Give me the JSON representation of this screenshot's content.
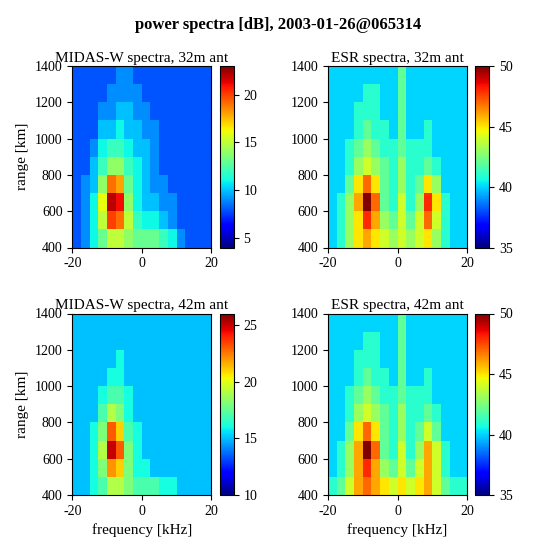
{
  "title": "power spectra [dB], 2003-01-26@065314",
  "chart_data": [
    {
      "type": "heatmap",
      "title": "MIDAS-W spectra, 32m ant",
      "ylabel": "range [km]",
      "x_edges": [
        -20,
        -17.5,
        -15,
        -12.5,
        -10,
        -7.5,
        -5,
        -2.5,
        0,
        2.5,
        5,
        7.5,
        10,
        12.5,
        15,
        17.5,
        20
      ],
      "y_edges": [
        400,
        500,
        600,
        700,
        800,
        900,
        1000,
        1100,
        1200,
        1300,
        1400
      ],
      "cells": [
        [
          8,
          9,
          11,
          13,
          15,
          15,
          14,
          13,
          13,
          13,
          12,
          11,
          9,
          8,
          8,
          8
        ],
        [
          8,
          9,
          11,
          15,
          20,
          19,
          15,
          12,
          11,
          11,
          10,
          9,
          8,
          8,
          8,
          8
        ],
        [
          8,
          9,
          11,
          16,
          22,
          21,
          14,
          11,
          10,
          10,
          9,
          9,
          8,
          8,
          8,
          8
        ],
        [
          8,
          9,
          10,
          14,
          19,
          18,
          13,
          11,
          10,
          9,
          9,
          8,
          8,
          8,
          8,
          8
        ],
        [
          8,
          8,
          10,
          12,
          14,
          14,
          12,
          11,
          10,
          9,
          8,
          8,
          8,
          8,
          8,
          8
        ],
        [
          8,
          8,
          9,
          11,
          12,
          12,
          11,
          10,
          10,
          9,
          8,
          8,
          8,
          8,
          8,
          8
        ],
        [
          8,
          8,
          8,
          10,
          10,
          11,
          10,
          10,
          9,
          9,
          8,
          8,
          8,
          8,
          8,
          8
        ],
        [
          8,
          8,
          8,
          9,
          9,
          10,
          10,
          9,
          9,
          8,
          8,
          8,
          8,
          8,
          8,
          8
        ],
        [
          8,
          8,
          8,
          8,
          9,
          9,
          9,
          9,
          8,
          8,
          8,
          8,
          8,
          8,
          8,
          8
        ],
        [
          8,
          8,
          8,
          8,
          8,
          9,
          9,
          8,
          8,
          8,
          8,
          8,
          8,
          8,
          8,
          8
        ]
      ],
      "colorbar": {
        "lim": [
          4,
          23
        ],
        "ticks": [
          5,
          10,
          15,
          20
        ]
      },
      "xlim": [
        -20,
        20
      ],
      "xticks": [
        -20,
        0,
        20
      ],
      "ylim": [
        400,
        1400
      ],
      "yticks": [
        400,
        600,
        800,
        1000,
        1200,
        1400
      ]
    },
    {
      "type": "heatmap",
      "title": "ESR spectra, 32m ant",
      "x_edges": [
        -20,
        -17.5,
        -15,
        -12.5,
        -10,
        -7.5,
        -5,
        -2.5,
        0,
        2.5,
        5,
        7.5,
        10,
        12.5,
        15,
        17.5,
        20
      ],
      "y_edges": [
        400,
        500,
        600,
        700,
        800,
        900,
        1000,
        1100,
        1200,
        1300,
        1400
      ],
      "cells": [
        [
          40,
          41,
          43,
          45,
          46,
          45,
          44,
          43,
          44,
          43,
          44,
          45,
          43,
          41,
          40,
          40
        ],
        [
          40,
          41,
          43,
          45,
          48,
          46,
          43,
          42,
          44,
          42,
          44,
          47,
          44,
          41,
          40,
          40
        ],
        [
          40,
          41,
          43,
          46,
          50,
          47,
          42,
          41,
          44,
          41,
          43,
          48,
          45,
          41,
          40,
          40
        ],
        [
          40,
          40,
          42,
          45,
          47,
          45,
          42,
          41,
          43,
          41,
          42,
          45,
          43,
          40,
          40,
          40
        ],
        [
          40,
          40,
          41,
          43,
          44,
          43,
          42,
          41,
          43,
          41,
          41,
          42,
          41,
          40,
          40,
          40
        ],
        [
          40,
          40,
          41,
          42,
          43,
          42,
          41,
          41,
          42,
          41,
          41,
          41,
          40,
          40,
          40,
          40
        ],
        [
          40,
          40,
          40,
          41,
          42,
          41,
          41,
          40,
          42,
          40,
          40,
          41,
          40,
          40,
          40,
          40
        ],
        [
          40,
          40,
          40,
          41,
          41,
          41,
          40,
          40,
          42,
          40,
          40,
          40,
          40,
          40,
          40,
          40
        ],
        [
          40,
          40,
          40,
          40,
          41,
          41,
          40,
          40,
          42,
          40,
          40,
          40,
          40,
          40,
          40,
          40
        ],
        [
          40,
          40,
          40,
          40,
          40,
          40,
          40,
          40,
          42,
          40,
          40,
          40,
          40,
          40,
          40,
          40
        ]
      ],
      "colorbar": {
        "lim": [
          35,
          50
        ],
        "ticks": [
          35,
          40,
          45,
          50
        ]
      },
      "xlim": [
        -20,
        20
      ],
      "xticks": [
        -20,
        0,
        20
      ],
      "ylim": [
        400,
        1400
      ],
      "yticks": [
        400,
        600,
        800,
        1000,
        1200,
        1400
      ]
    },
    {
      "type": "heatmap",
      "title": "MIDAS-W spectra, 42m ant",
      "xlabel": "frequency [kHz]",
      "ylabel": "range [km]",
      "x_edges": [
        -20,
        -17.5,
        -15,
        -12.5,
        -10,
        -7.5,
        -5,
        -2.5,
        0,
        2.5,
        5,
        7.5,
        10,
        12.5,
        15,
        17.5,
        20
      ],
      "y_edges": [
        400,
        500,
        600,
        700,
        800,
        900,
        1000,
        1100,
        1200,
        1300,
        1400
      ],
      "cells": [
        [
          15,
          15,
          16,
          17,
          19,
          19,
          18,
          17,
          17,
          17,
          16,
          16,
          15,
          15,
          15,
          15
        ],
        [
          15,
          15,
          16,
          18,
          22,
          21,
          18,
          16,
          16,
          15,
          15,
          15,
          15,
          15,
          15,
          15
        ],
        [
          15,
          15,
          16,
          19,
          25,
          23,
          18,
          16,
          15,
          15,
          15,
          15,
          15,
          15,
          15,
          15
        ],
        [
          15,
          15,
          16,
          18,
          23,
          21,
          17,
          16,
          15,
          15,
          15,
          15,
          15,
          15,
          15,
          15
        ],
        [
          15,
          15,
          15,
          17,
          19,
          18,
          16,
          15,
          15,
          15,
          15,
          15,
          15,
          15,
          15,
          15
        ],
        [
          15,
          15,
          15,
          16,
          17,
          17,
          16,
          15,
          15,
          15,
          15,
          15,
          15,
          15,
          15,
          15
        ],
        [
          15,
          15,
          15,
          15,
          16,
          16,
          15,
          15,
          15,
          15,
          15,
          15,
          15,
          15,
          15,
          15
        ],
        [
          15,
          15,
          15,
          15,
          15,
          16,
          15,
          15,
          15,
          15,
          15,
          15,
          15,
          15,
          15,
          15
        ],
        [
          15,
          15,
          15,
          15,
          15,
          15,
          15,
          15,
          15,
          15,
          15,
          15,
          15,
          15,
          15,
          15
        ],
        [
          15,
          15,
          15,
          15,
          15,
          15,
          15,
          15,
          15,
          15,
          15,
          15,
          15,
          15,
          15,
          15
        ]
      ],
      "colorbar": {
        "lim": [
          10,
          26
        ],
        "ticks": [
          10,
          15,
          20,
          25
        ]
      },
      "xlim": [
        -20,
        20
      ],
      "xticks": [
        -20,
        0,
        20
      ],
      "ylim": [
        400,
        1400
      ],
      "yticks": [
        400,
        600,
        800,
        1000,
        1200,
        1400
      ]
    },
    {
      "type": "heatmap",
      "title": "ESR spectra, 42m ant",
      "xlabel": "frequency [kHz]",
      "x_edges": [
        -20,
        -17.5,
        -15,
        -12.5,
        -10,
        -7.5,
        -5,
        -2.5,
        0,
        2.5,
        5,
        7.5,
        10,
        12.5,
        15,
        17.5,
        20
      ],
      "y_edges": [
        400,
        500,
        600,
        700,
        800,
        900,
        1000,
        1100,
        1200,
        1300,
        1400
      ],
      "cells": [
        [
          41,
          42,
          44,
          46,
          47,
          46,
          45,
          44,
          45,
          44,
          45,
          46,
          44,
          42,
          41,
          41
        ],
        [
          40,
          41,
          43,
          46,
          48,
          46,
          43,
          42,
          44,
          42,
          44,
          46,
          44,
          41,
          40,
          40
        ],
        [
          40,
          41,
          43,
          46,
          50,
          47,
          42,
          41,
          44,
          41,
          43,
          46,
          44,
          41,
          40,
          40
        ],
        [
          40,
          40,
          42,
          45,
          47,
          45,
          42,
          41,
          43,
          41,
          42,
          44,
          42,
          40,
          40,
          40
        ],
        [
          40,
          40,
          41,
          43,
          44,
          43,
          42,
          41,
          43,
          41,
          41,
          42,
          41,
          40,
          40,
          40
        ],
        [
          40,
          40,
          41,
          42,
          43,
          42,
          41,
          41,
          42,
          41,
          41,
          41,
          40,
          40,
          40,
          40
        ],
        [
          40,
          40,
          40,
          41,
          42,
          41,
          41,
          40,
          42,
          40,
          40,
          41,
          40,
          40,
          40,
          40
        ],
        [
          40,
          40,
          40,
          41,
          41,
          41,
          40,
          40,
          42,
          40,
          40,
          40,
          40,
          40,
          40,
          40
        ],
        [
          40,
          40,
          40,
          40,
          41,
          41,
          40,
          40,
          42,
          40,
          40,
          40,
          40,
          40,
          40,
          40
        ],
        [
          40,
          40,
          40,
          40,
          40,
          40,
          40,
          40,
          42,
          40,
          40,
          40,
          40,
          40,
          40,
          40
        ]
      ],
      "colorbar": {
        "lim": [
          35,
          50
        ],
        "ticks": [
          35,
          40,
          45,
          50
        ]
      },
      "xlim": [
        -20,
        20
      ],
      "xticks": [
        -20,
        0,
        20
      ],
      "ylim": [
        400,
        1400
      ],
      "yticks": [
        400,
        600,
        800,
        1000,
        1200,
        1400
      ]
    }
  ]
}
